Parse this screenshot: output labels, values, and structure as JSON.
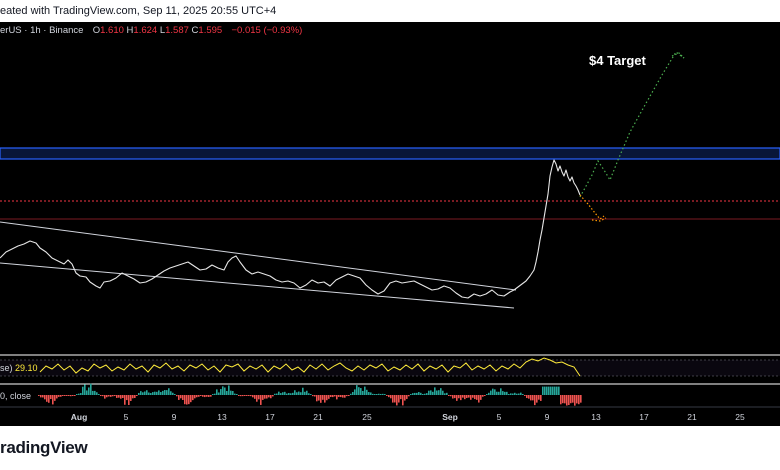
{
  "header": {
    "text": "eated with TradingView.com, Sep 11, 2025 20:55 UTC+4"
  },
  "legend": {
    "symbol": "erUS · 1h · Binance",
    "open_label": "O",
    "open": "1.610",
    "high_label": "H",
    "high": "1.624",
    "low_label": "L",
    "low": "1.587",
    "close_label": "C",
    "close": "1.595",
    "change": "−0.015 (−0.93%)"
  },
  "annotation": {
    "target": "$4 Target"
  },
  "rsi_pane": {
    "label": "se)",
    "value": "29.10"
  },
  "macd_pane": {
    "label": "0, close"
  },
  "x_axis": {
    "ticks": [
      {
        "label": "Aug",
        "bold": true
      },
      {
        "label": "5",
        "bold": false
      },
      {
        "label": "9",
        "bold": false
      },
      {
        "label": "13",
        "bold": false
      },
      {
        "label": "17",
        "bold": false
      },
      {
        "label": "21",
        "bold": false
      },
      {
        "label": "25",
        "bold": false
      },
      {
        "label": "Sep",
        "bold": true
      },
      {
        "label": "5",
        "bold": false
      },
      {
        "label": "9",
        "bold": false
      },
      {
        "label": "13",
        "bold": false
      },
      {
        "label": "17",
        "bold": false
      },
      {
        "label": "21",
        "bold": false
      },
      {
        "label": "25",
        "bold": false
      }
    ]
  },
  "footer": {
    "brand": "radingView"
  },
  "colors": {
    "background": "#000000",
    "price_line": "#e6e6e6",
    "resistance_zone": "#2962ff",
    "support_line": "#f23645",
    "target_path": "#4caf50",
    "rsi_line": "#ffeb3b",
    "macd_up": "#26a69a",
    "macd_down": "#ef5350",
    "channel_line": "#d1d4dc"
  }
}
